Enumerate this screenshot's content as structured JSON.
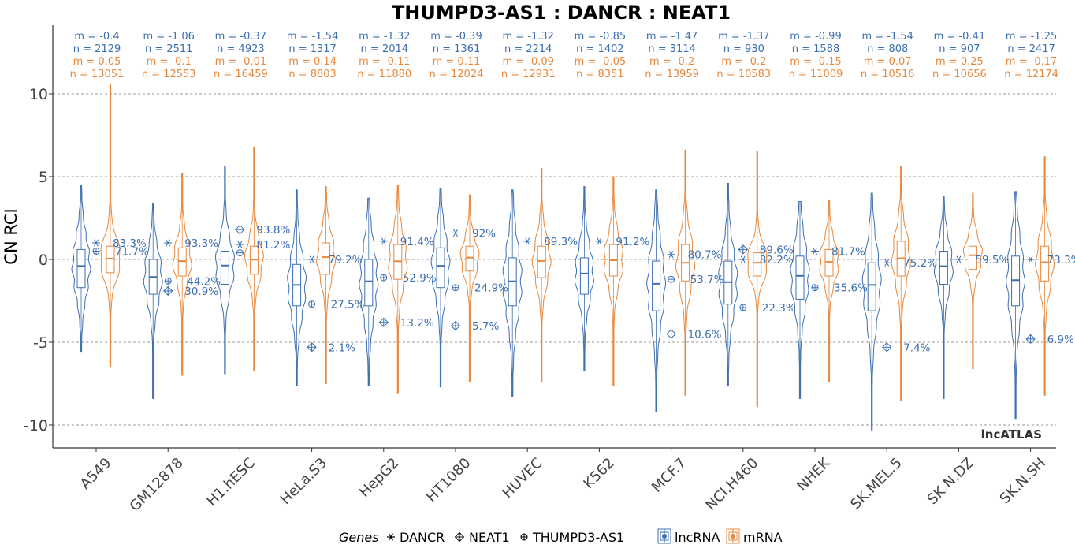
{
  "colors": {
    "lncRNA": "#3c6eb0",
    "mRNA": "#e8883c",
    "grid": "#9a9a9a",
    "axis": "#333333"
  },
  "brand": "lncATLAS",
  "legend": {
    "genes_title": "Genes",
    "genes": [
      {
        "name": "DANCR",
        "icon": "asterisk-icon"
      },
      {
        "name": "NEAT1",
        "icon": "circle-plus-icon"
      },
      {
        "name": "THUMPD3-AS1",
        "icon": "small-circle-plus-icon"
      }
    ],
    "classes": [
      "lncRNA",
      "mRNA"
    ]
  },
  "chart_data": {
    "type": "violin",
    "title": "THUMPD3-AS1 : DANCR : NEAT1",
    "ylabel": "CN RCI",
    "xlabel": "",
    "ylim": [
      -11.5,
      14
    ],
    "yticks": [
      -10,
      -5,
      0,
      5,
      10
    ],
    "yticklabels": [
      "-10",
      "-5",
      "0",
      "5",
      "10"
    ],
    "grid": true,
    "legend_position": "bottom",
    "categories": [
      "A549",
      "GM12878",
      "H1.hESC",
      "HeLa.S3",
      "HepG2",
      "HT1080",
      "HUVEC",
      "K562",
      "MCF.7",
      "NCI.H460",
      "NHEK",
      "SK.MEL.5",
      "SK.N.DZ",
      "SK.N.SH"
    ],
    "series": [
      {
        "name": "lncRNA",
        "stats": [
          {
            "m_label": "m = -0.4",
            "n_label": "n = 2129",
            "median": -0.4,
            "q1": -1.7,
            "q3": 0.6,
            "min": -5.6,
            "max": 4.5
          },
          {
            "m_label": "m = -1.06",
            "n_label": "n = 2511",
            "median": -1.06,
            "q1": -2.1,
            "q3": 0.0,
            "min": -8.4,
            "max": 3.4
          },
          {
            "m_label": "m = -0.37",
            "n_label": "n = 4923",
            "median": -0.37,
            "q1": -1.5,
            "q3": 0.5,
            "min": -6.9,
            "max": 5.6
          },
          {
            "m_label": "m = -1.54",
            "n_label": "n = 1317",
            "median": -1.54,
            "q1": -2.8,
            "q3": -0.3,
            "min": -7.6,
            "max": 4.2
          },
          {
            "m_label": "m = -1.32",
            "n_label": "n = 2014",
            "median": -1.32,
            "q1": -2.8,
            "q3": 0.0,
            "min": -7.6,
            "max": 3.7
          },
          {
            "m_label": "m = -0.39",
            "n_label": "n = 1361",
            "median": -0.39,
            "q1": -1.7,
            "q3": 0.7,
            "min": -7.7,
            "max": 4.3
          },
          {
            "m_label": "m = -1.32",
            "n_label": "n = 2214",
            "median": -1.32,
            "q1": -2.8,
            "q3": 0.1,
            "min": -8.3,
            "max": 4.2
          },
          {
            "m_label": "m = -0.85",
            "n_label": "n = 1402",
            "median": -0.85,
            "q1": -2.1,
            "q3": 0.1,
            "min": -6.7,
            "max": 4.4
          },
          {
            "m_label": "m = -1.47",
            "n_label": "n = 3114",
            "median": -1.47,
            "q1": -3.1,
            "q3": -0.1,
            "min": -9.2,
            "max": 4.2
          },
          {
            "m_label": "m = -1.37",
            "n_label": "n = 930",
            "median": -1.37,
            "q1": -2.7,
            "q3": -0.1,
            "min": -7.6,
            "max": 4.6
          },
          {
            "m_label": "m = -0.99",
            "n_label": "n = 1588",
            "median": -0.99,
            "q1": -2.4,
            "q3": 0.2,
            "min": -8.4,
            "max": 3.5
          },
          {
            "m_label": "m = -1.54",
            "n_label": "n = 808",
            "median": -1.54,
            "q1": -3.1,
            "q3": -0.2,
            "min": -10.3,
            "max": 4.0
          },
          {
            "m_label": "m = -0.41",
            "n_label": "n = 907",
            "median": -0.41,
            "q1": -1.5,
            "q3": 0.5,
            "min": -8.4,
            "max": 3.8
          },
          {
            "m_label": "m = -1.25",
            "n_label": "n = 2417",
            "median": -1.25,
            "q1": -2.8,
            "q3": 0.2,
            "min": -9.6,
            "max": 4.1
          }
        ]
      },
      {
        "name": "mRNA",
        "stats": [
          {
            "m_label": "m = 0.05",
            "n_label": "n = 13051",
            "median": 0.05,
            "q1": -0.8,
            "q3": 0.8,
            "min": -6.5,
            "max": 10.6
          },
          {
            "m_label": "m = -0.1",
            "n_label": "n = 12553",
            "median": -0.1,
            "q1": -1.0,
            "q3": 0.7,
            "min": -7.0,
            "max": 5.2
          },
          {
            "m_label": "m = -0.01",
            "n_label": "n = 16459",
            "median": -0.01,
            "q1": -0.9,
            "q3": 0.8,
            "min": -6.7,
            "max": 6.8
          },
          {
            "m_label": "m = 0.14",
            "n_label": "n = 8803",
            "median": 0.14,
            "q1": -0.9,
            "q3": 1.0,
            "min": -7.5,
            "max": 4.4
          },
          {
            "m_label": "m = -0.11",
            "n_label": "n = 11880",
            "median": -0.11,
            "q1": -1.2,
            "q3": 0.9,
            "min": -8.1,
            "max": 4.5
          },
          {
            "m_label": "m = 0.11",
            "n_label": "n = 12024",
            "median": 0.11,
            "q1": -0.7,
            "q3": 0.8,
            "min": -7.4,
            "max": 3.9
          },
          {
            "m_label": "m = -0.09",
            "n_label": "n = 12931",
            "median": -0.09,
            "q1": -1.1,
            "q3": 0.8,
            "min": -7.4,
            "max": 5.5
          },
          {
            "m_label": "m = -0.05",
            "n_label": "n = 8351",
            "median": -0.05,
            "q1": -1.0,
            "q3": 0.9,
            "min": -7.6,
            "max": 5.0
          },
          {
            "m_label": "m = -0.2",
            "n_label": "n = 13959",
            "median": -0.2,
            "q1": -1.3,
            "q3": 0.9,
            "min": -8.2,
            "max": 6.6
          },
          {
            "m_label": "m = -0.2",
            "n_label": "n = 10583",
            "median": -0.2,
            "q1": -1.0,
            "q3": 0.4,
            "min": -8.9,
            "max": 6.5
          },
          {
            "m_label": "m = -0.15",
            "n_label": "n = 11009",
            "median": -0.15,
            "q1": -1.0,
            "q3": 0.6,
            "min": -7.4,
            "max": 3.6
          },
          {
            "m_label": "m = 0.07",
            "n_label": "n = 10516",
            "median": 0.07,
            "q1": -1.0,
            "q3": 1.1,
            "min": -8.5,
            "max": 5.6
          },
          {
            "m_label": "m = 0.25",
            "n_label": "n = 10656",
            "median": 0.25,
            "q1": -0.6,
            "q3": 0.8,
            "min": -6.6,
            "max": 4.0
          },
          {
            "m_label": "m = -0.17",
            "n_label": "n = 12174",
            "median": -0.17,
            "q1": -1.3,
            "q3": 0.8,
            "min": -8.2,
            "max": 6.2
          }
        ]
      }
    ],
    "genes": [
      {
        "name": "DANCR",
        "values": [
          1.0,
          1.0,
          0.9,
          0.0,
          1.1,
          1.6,
          1.1,
          1.1,
          0.3,
          0.0,
          0.5,
          -0.2,
          0.0,
          0.0
        ],
        "percents": [
          "83.3%",
          "93.3%",
          "81.2%",
          "79.2%",
          "91.4%",
          "92%",
          "89.3%",
          "91.2%",
          "80.7%",
          "82.2%",
          "81.7%",
          "75.2%",
          "59.5%",
          "73.3%"
        ]
      },
      {
        "name": "NEAT1",
        "values": [
          null,
          -1.9,
          1.8,
          -5.3,
          -3.8,
          -4.0,
          null,
          null,
          -4.5,
          0.6,
          null,
          -5.3,
          null,
          -4.8
        ],
        "percents": [
          null,
          "30.9%",
          "93.8%",
          "2.1%",
          "13.2%",
          "5.7%",
          null,
          null,
          "10.6%",
          "89.6%",
          null,
          "7.4%",
          null,
          "6.9%"
        ]
      },
      {
        "name": "THUMPD3-AS1",
        "values": [
          0.5,
          -1.3,
          0.4,
          -2.7,
          -1.1,
          -1.7,
          null,
          null,
          -1.2,
          -2.9,
          -1.7,
          null,
          null,
          null
        ],
        "percents": [
          "71.7%",
          "44.2%",
          null,
          "27.5%",
          "52.9%",
          "24.9%",
          null,
          null,
          "53.7%",
          "22.3%",
          "35.6%",
          null,
          null,
          null
        ]
      }
    ]
  }
}
